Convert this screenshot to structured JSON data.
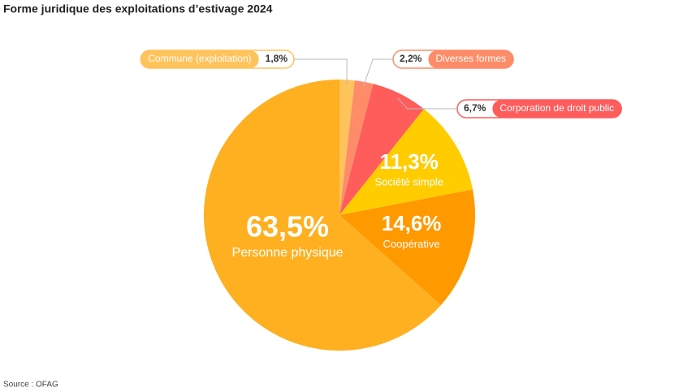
{
  "chart_data": {
    "type": "pie",
    "title": "Forme juridique des exploitations d’estivage 2024",
    "categories": [
      "Commune (exploitation)",
      "Diverses formes",
      "Corporation de droit public",
      "Société simple",
      "Coopérative",
      "Personne physique"
    ],
    "values": [
      1.8,
      2.2,
      6.7,
      11.3,
      14.6,
      63.5
    ],
    "value_labels": [
      "1,8%",
      "2,2%",
      "6,7%",
      "11,3%",
      "14,6%",
      "63,5%"
    ],
    "colors": [
      "#ffc35c",
      "#ff8c69",
      "#ff5c5c",
      "#ffcc00",
      "#ff9900",
      "#ffb020"
    ],
    "source": "Source : OFAG"
  }
}
